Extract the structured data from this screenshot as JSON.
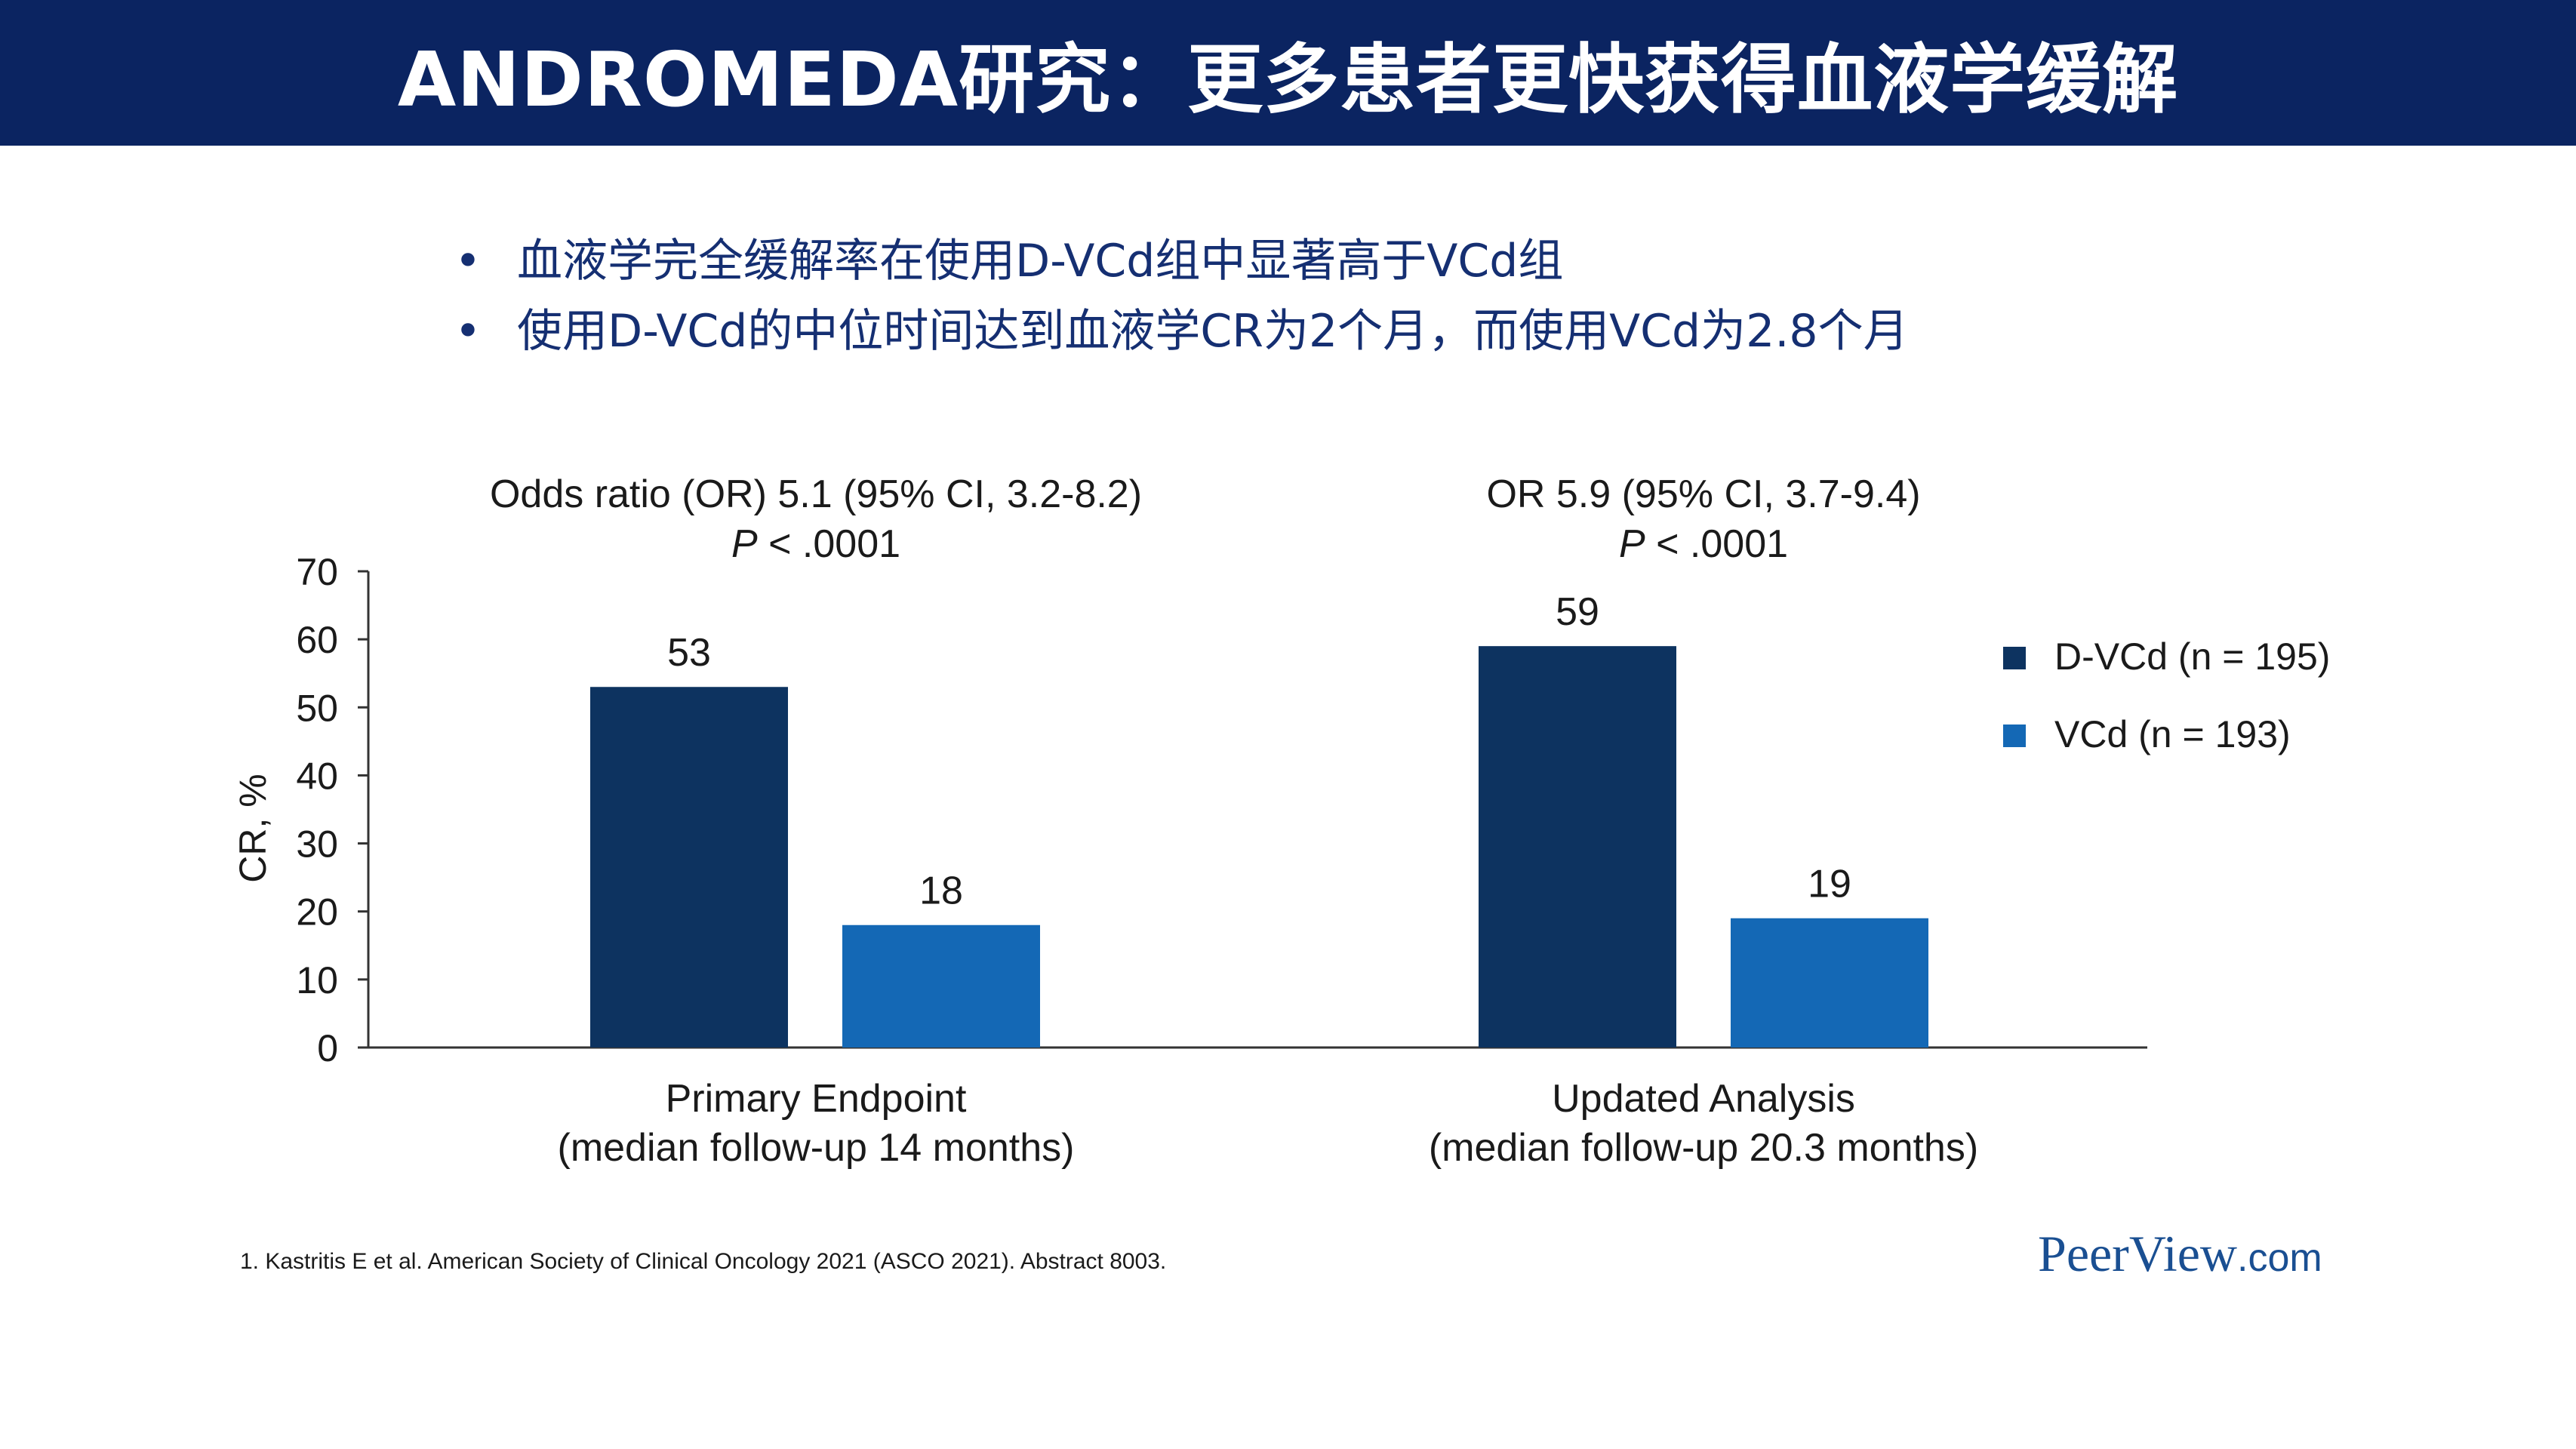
{
  "slide": {
    "title": "ANDROMEDA研究：更多患者更快获得血液学缓解",
    "bullets": [
      "血液学完全缓解率在使用D-VCd组中显著高于VCd组",
      "使用D-VCd的中位时间达到血液学CR为2个月，而使用VCd为2.8个月"
    ],
    "bullet_glyph": "•",
    "footnote": "1. Kastritis E et al. American Society of Clinical Oncology 2021 (ASCO 2021). Abstract 8003.",
    "logo_main": "PeerView",
    "logo_suffix": ".com"
  },
  "colors": {
    "title_bg": "#0b2461",
    "bullet_text": "#152f72",
    "dvcd": "#0d3360",
    "vcd": "#1468b5"
  },
  "chart_data": {
    "type": "bar",
    "categories": [
      [
        "Primary Endpoint",
        "(median follow-up 14 months)"
      ],
      [
        "Updated Analysis",
        "(median follow-up 20.3 months)"
      ]
    ],
    "series": [
      {
        "name": "D-VCd (n = 195)",
        "values": [
          53,
          59
        ],
        "color": "#0d3360"
      },
      {
        "name": "VCd (n = 193)",
        "values": [
          18,
          19
        ],
        "color": "#1468b5"
      }
    ],
    "group_annotations": [
      {
        "line1": "Odds ratio (OR) 5.1 (95% CI, 3.2-8.2)",
        "p_label": "P",
        "p_value": " < .0001"
      },
      {
        "line1": "OR 5.9 (95% CI, 3.7-9.4)",
        "p_label": "P",
        "p_value": " < .0001"
      }
    ],
    "ylabel": "CR, %",
    "ylim": [
      0,
      70
    ],
    "yticks": [
      0,
      10,
      20,
      30,
      40,
      50,
      60,
      70
    ],
    "grid": false,
    "legend_position": "right"
  }
}
